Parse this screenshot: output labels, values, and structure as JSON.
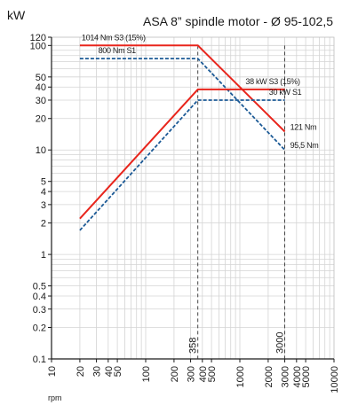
{
  "chart_data": {
    "type": "line",
    "title": "ASA 8” spindle motor - Ø 95-102,5",
    "ylabel": "kW",
    "xlabel": "rpm",
    "x_scale": "log",
    "y_scale": "log",
    "xlim": [
      10,
      10000
    ],
    "ylim": [
      0.1,
      120
    ],
    "grid": true,
    "x_ticks": [
      {
        "value": 10,
        "label": "10"
      },
      {
        "value": 20,
        "label": "20"
      },
      {
        "value": 30,
        "label": "30"
      },
      {
        "value": 40,
        "label": "40"
      },
      {
        "value": 50,
        "label": "50"
      },
      {
        "value": 100,
        "label": "100"
      },
      {
        "value": 200,
        "label": "200"
      },
      {
        "value": 300,
        "label": "300"
      },
      {
        "value": 400,
        "label": "400"
      },
      {
        "value": 500,
        "label": "500"
      },
      {
        "value": 1000,
        "label": "1000"
      },
      {
        "value": 2000,
        "label": "2000"
      },
      {
        "value": 3000,
        "label": "3000"
      },
      {
        "value": 4000,
        "label": "4000"
      },
      {
        "value": 5000,
        "label": "5000"
      },
      {
        "value": 10000,
        "label": "10000"
      }
    ],
    "y_ticks": [
      {
        "value": 0.1,
        "label": "0.1"
      },
      {
        "value": 0.2,
        "label": "0.2"
      },
      {
        "value": 0.3,
        "label": "0.3"
      },
      {
        "value": 0.4,
        "label": "0.4"
      },
      {
        "value": 0.5,
        "label": "0.5"
      },
      {
        "value": 1,
        "label": "1"
      },
      {
        "value": 2,
        "label": "2"
      },
      {
        "value": 3,
        "label": "3"
      },
      {
        "value": 4,
        "label": "4"
      },
      {
        "value": 5,
        "label": "5"
      },
      {
        "value": 10,
        "label": "10"
      },
      {
        "value": 20,
        "label": "20"
      },
      {
        "value": 30,
        "label": "30"
      },
      {
        "value": 40,
        "label": "40"
      },
      {
        "value": 50,
        "label": "50"
      },
      {
        "value": 100,
        "label": "100"
      },
      {
        "value": 120,
        "label": "120"
      }
    ],
    "series": [
      {
        "kind": "torque",
        "label": "1014 Nm S3 (15%)",
        "label_at": [
          20,
          100
        ],
        "color": "#e8251c",
        "dash": false,
        "x": [
          20,
          358,
          3000
        ],
        "y": [
          100,
          100,
          15
        ]
      },
      {
        "kind": "torque",
        "label": "800 Nm S1",
        "label_at": [
          30,
          75
        ],
        "color": "#1c5a96",
        "dash": true,
        "x": [
          20,
          358,
          3000
        ],
        "y": [
          75,
          75,
          10
        ]
      },
      {
        "kind": "power",
        "label": "38 kW S3 (15%)",
        "label_at": [
          1100,
          38
        ],
        "color": "#e8251c",
        "dash": false,
        "x": [
          20,
          358,
          3000
        ],
        "y": [
          2.2,
          38,
          38
        ]
      },
      {
        "kind": "power",
        "label": "30 kW S1",
        "label_at": [
          1950,
          30
        ],
        "color": "#1c5a96",
        "dash": true,
        "x": [
          20,
          358,
          3000
        ],
        "y": [
          1.7,
          30,
          30
        ]
      }
    ],
    "end_labels": [
      {
        "text": "121 Nm",
        "at": [
          3000,
          15
        ]
      },
      {
        "text": "95,5 Nm",
        "at": [
          3000,
          10
        ]
      }
    ],
    "markers": [
      {
        "x": 358,
        "label": "358"
      },
      {
        "x": 3000,
        "label": "3000"
      }
    ]
  }
}
